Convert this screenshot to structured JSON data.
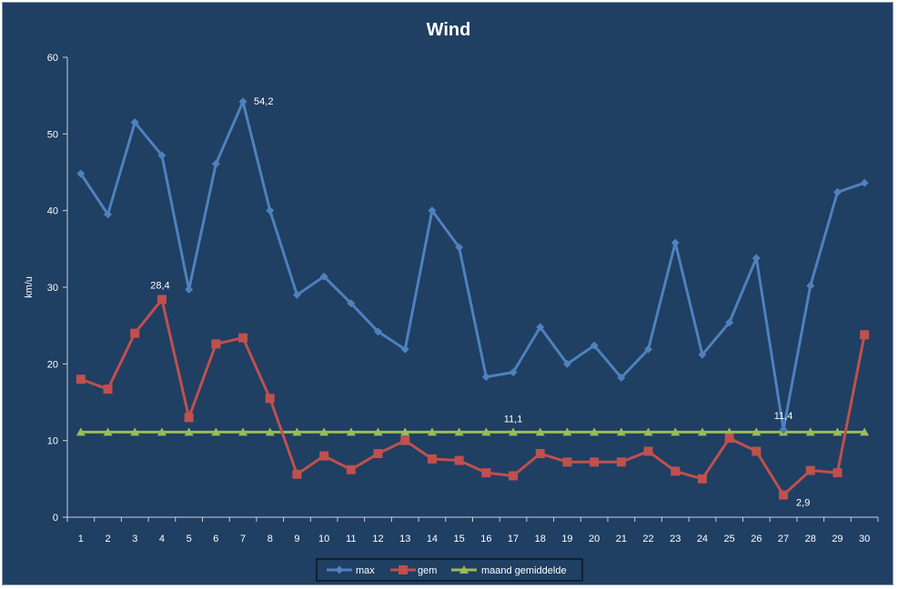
{
  "chart_data": {
    "type": "line",
    "title": "Wind",
    "xlabel": "",
    "ylabel": "km/u",
    "ylim": [
      0,
      60
    ],
    "yticks": [
      0,
      10,
      20,
      30,
      40,
      50,
      60
    ],
    "categories": [
      "1",
      "2",
      "3",
      "4",
      "5",
      "6",
      "7",
      "8",
      "9",
      "10",
      "11",
      "12",
      "13",
      "14",
      "15",
      "16",
      "17",
      "18",
      "19",
      "20",
      "21",
      "22",
      "23",
      "24",
      "25",
      "26",
      "27",
      "28",
      "29",
      "30"
    ],
    "grid": false,
    "legend_position": "bottom",
    "series": [
      {
        "name": "max",
        "color": "#4f81bd",
        "marker": "diamond",
        "values": [
          44.8,
          39.5,
          51.5,
          47.2,
          29.7,
          46.1,
          54.2,
          40.0,
          29.0,
          31.4,
          27.9,
          24.2,
          21.9,
          40.0,
          35.2,
          18.3,
          18.9,
          24.8,
          20.0,
          22.4,
          18.2,
          21.9,
          35.8,
          21.2,
          25.4,
          33.8,
          11.4,
          30.2,
          42.4,
          43.6
        ]
      },
      {
        "name": "gem",
        "color": "#c0504d",
        "marker": "square",
        "values": [
          18.0,
          16.7,
          24.0,
          28.4,
          13.0,
          22.6,
          23.4,
          15.5,
          5.6,
          8.0,
          6.2,
          8.3,
          10.0,
          7.6,
          7.4,
          5.8,
          5.4,
          8.3,
          7.2,
          7.2,
          7.2,
          8.6,
          6.0,
          5.0,
          10.3,
          8.6,
          2.9,
          6.1,
          5.8,
          23.8
        ]
      },
      {
        "name": "maand gemiddelde",
        "color": "#9bbb59",
        "marker": "triangle",
        "values": [
          11.1,
          11.1,
          11.1,
          11.1,
          11.1,
          11.1,
          11.1,
          11.1,
          11.1,
          11.1,
          11.1,
          11.1,
          11.1,
          11.1,
          11.1,
          11.1,
          11.1,
          11.1,
          11.1,
          11.1,
          11.1,
          11.1,
          11.1,
          11.1,
          11.1,
          11.1,
          11.1,
          11.1,
          11.1,
          11.1
        ]
      }
    ],
    "data_labels": [
      {
        "series": 0,
        "index": 6,
        "text": "54,2"
      },
      {
        "series": 1,
        "index": 3,
        "text": "28,4"
      },
      {
        "series": 2,
        "index": 16,
        "text": "11,1"
      },
      {
        "series": 0,
        "index": 26,
        "text": "11,4"
      },
      {
        "series": 1,
        "index": 26,
        "text": "2,9"
      }
    ]
  }
}
